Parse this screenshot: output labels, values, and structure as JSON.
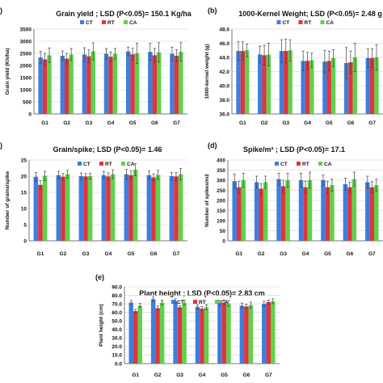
{
  "colors": {
    "CT": "#3d7fe0",
    "RT": "#e0343f",
    "CA": "#5fd14a",
    "grid": "#d0d0d0",
    "axis": "#555555",
    "error": "#444444"
  },
  "chart_data": [
    {
      "panel_label": ")",
      "type": "bar",
      "title": "Grain yield ;  LSD (P<0.05)= 150.1 Kg/ha",
      "ylabel": "Grain yield (Kh/ha)",
      "xlabel": "",
      "ylim": [
        0,
        3500
      ],
      "yticks": [
        "0",
        "500",
        "1000",
        "1500",
        "2000",
        "2500",
        "3000",
        "3500"
      ],
      "ytick_values": [
        0,
        500,
        1000,
        1500,
        2000,
        2500,
        3000,
        3500
      ],
      "grid": true,
      "legend_placement": "top-center",
      "categories": [
        "G1",
        "G2",
        "G3",
        "G4",
        "G5",
        "G6",
        "G7"
      ],
      "series": [
        {
          "name": "CT",
          "values": [
            2330,
            2400,
            2450,
            2480,
            2580,
            2560,
            2480
          ],
          "errors": [
            250,
            200,
            280,
            220,
            180,
            350,
            280
          ]
        },
        {
          "name": "RT",
          "values": [
            2250,
            2280,
            2380,
            2360,
            2460,
            2420,
            2400
          ],
          "errors": [
            250,
            220,
            260,
            200,
            250,
            280,
            250
          ]
        },
        {
          "name": "CA",
          "values": [
            2420,
            2450,
            2580,
            2480,
            2500,
            2540,
            2560
          ],
          "errors": [
            300,
            250,
            350,
            220,
            420,
            400,
            380
          ]
        }
      ]
    },
    {
      "panel_label": "(b)",
      "type": "bar",
      "title": "1000-Kernel Weight;  LSD (P<0.05)= 2.48 g",
      "ylabel": "1000-kernel weight (g)",
      "xlabel": "",
      "ylim": [
        36,
        48
      ],
      "yticks": [
        "36.0",
        "38.0",
        "40.0",
        "42.0",
        "44.0",
        "46.0",
        "48.0"
      ],
      "ytick_values": [
        36,
        38,
        40,
        42,
        44,
        46,
        48
      ],
      "grid": true,
      "legend_placement": "top-center",
      "categories": [
        "G1",
        "G2",
        "G3",
        "G4",
        "G5",
        "G6",
        "G7"
      ],
      "series": [
        {
          "name": "CT",
          "values": [
            44.9,
            44.4,
            44.9,
            43.5,
            43.4,
            43.2,
            43.9
          ],
          "errors": [
            1.3,
            1.2,
            1.6,
            1.4,
            1.6,
            2.2,
            1.3
          ]
        },
        {
          "name": "RT",
          "values": [
            44.9,
            44.3,
            44.9,
            43.5,
            43.5,
            43.3,
            43.9
          ],
          "errors": [
            1.3,
            1.4,
            1.7,
            1.2,
            1.4,
            1.6,
            1.3
          ]
        },
        {
          "name": "CA",
          "values": [
            45.0,
            44.4,
            45.0,
            43.6,
            43.9,
            44.0,
            44.0
          ],
          "errors": [
            0.9,
            1.6,
            1.5,
            1.0,
            1.2,
            2.0,
            1.8
          ]
        }
      ]
    },
    {
      "panel_label": ")",
      "type": "bar",
      "title": "Grain/spike;  LSD (P<0.05)= 1.46",
      "ylabel": "Number of grains/spike",
      "xlabel": "",
      "ylim": [
        0,
        25
      ],
      "yticks": [
        "0",
        "5",
        "10",
        "15",
        "20",
        "25"
      ],
      "ytick_values": [
        0,
        5,
        10,
        15,
        20,
        25
      ],
      "grid": true,
      "legend_placement": "top-center",
      "categories": [
        "G1",
        "G2",
        "G3",
        "G4",
        "G5",
        "G6",
        "G7"
      ],
      "series": [
        {
          "name": "CT",
          "values": [
            19.8,
            20.3,
            20.0,
            20.3,
            20.6,
            20.3,
            20.0
          ],
          "errors": [
            1.3,
            1.2,
            1.0,
            1.2,
            1.5,
            1.3,
            1.2
          ]
        },
        {
          "name": "RT",
          "values": [
            17.3,
            19.8,
            19.9,
            19.9,
            20.3,
            19.6,
            19.9
          ],
          "errors": [
            1.3,
            1.0,
            0.9,
            1.1,
            1.3,
            1.1,
            1.2
          ]
        },
        {
          "name": "CA",
          "values": [
            20.1,
            20.6,
            20.0,
            20.6,
            22.0,
            20.4,
            20.6
          ],
          "errors": [
            1.4,
            1.2,
            0.9,
            1.4,
            1.9,
            1.4,
            1.8
          ]
        }
      ]
    },
    {
      "panel_label": "(d)",
      "type": "bar",
      "title": "Spike/m² ; LSD (P<0.05)= 17.1",
      "ylabel": "Number of spikes/m2",
      "xlabel": "",
      "ylim": [
        0,
        400
      ],
      "yticks": [
        "0",
        "50",
        "100",
        "150",
        "200",
        "250",
        "300",
        "350",
        "400"
      ],
      "ytick_values": [
        0,
        50,
        100,
        150,
        200,
        250,
        300,
        350,
        400
      ],
      "grid": true,
      "legend_placement": "top-center",
      "categories": [
        "G1",
        "G2",
        "G3",
        "G4",
        "G5",
        "G6",
        "G7"
      ],
      "series": [
        {
          "name": "CT",
          "values": [
            295,
            290,
            305,
            300,
            300,
            280,
            290
          ],
          "errors": [
            35,
            30,
            30,
            35,
            25,
            30,
            30
          ]
        },
        {
          "name": "RT",
          "values": [
            265,
            258,
            270,
            265,
            265,
            265,
            265
          ],
          "errors": [
            30,
            25,
            30,
            30,
            30,
            25,
            28
          ]
        },
        {
          "name": "CA",
          "values": [
            300,
            290,
            300,
            300,
            275,
            305,
            275
          ],
          "errors": [
            35,
            30,
            35,
            40,
            30,
            35,
            30
          ]
        }
      ]
    },
    {
      "panel_label": "(e)",
      "type": "bar",
      "title": "Plant height ;  LSD (P<0.05)= 2.83 cm",
      "ylabel": "Plant height (cm)",
      "xlabel": "",
      "ylim": [
        0,
        90
      ],
      "yticks": [
        "0.0",
        "10.0",
        "20.0",
        "30.0",
        "40.0",
        "50.0",
        "60.0",
        "70.0",
        "80.0",
        "90.0"
      ],
      "ytick_values": [
        0,
        10,
        20,
        30,
        40,
        50,
        60,
        70,
        80,
        90
      ],
      "grid": true,
      "legend_placement": "top-center",
      "categories": [
        "G1",
        "G2",
        "G3",
        "G4",
        "G5",
        "G6",
        "G7"
      ],
      "series": [
        {
          "name": "CT",
          "values": [
            71.5,
            75.5,
            73.5,
            66.5,
            71.0,
            68.0,
            70.0
          ],
          "errors": [
            2.5,
            2.5,
            2.5,
            2.5,
            3.0,
            3.0,
            3.0
          ]
        },
        {
          "name": "RT",
          "values": [
            61.5,
            65.0,
            66.0,
            64.5,
            71.5,
            67.0,
            72.0
          ],
          "errors": [
            2.0,
            2.5,
            2.0,
            2.5,
            3.0,
            2.5,
            2.5
          ]
        },
        {
          "name": "CA",
          "values": [
            68.0,
            71.5,
            71.5,
            66.0,
            70.5,
            68.5,
            73.0
          ],
          "errors": [
            2.5,
            3.0,
            3.0,
            3.0,
            3.5,
            3.5,
            3.0
          ]
        }
      ]
    }
  ]
}
